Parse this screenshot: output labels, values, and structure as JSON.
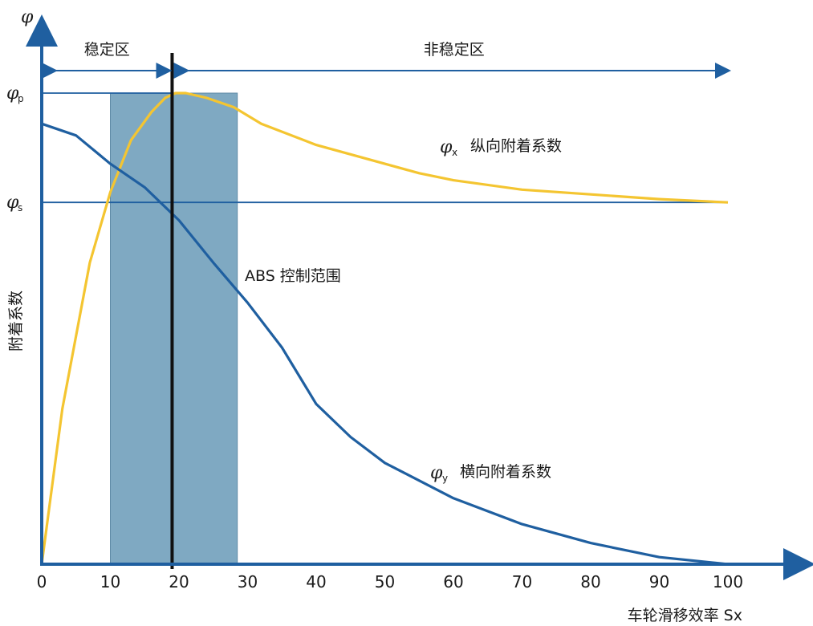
{
  "chart_data": {
    "type": "line",
    "xlabel": "车轮滑移效率 Sx",
    "ylabel": "附着系数",
    "y_axis_symbol": "φ",
    "xlim": [
      0,
      100
    ],
    "ylim": [
      0,
      1
    ],
    "x_ticks": [
      "0",
      "10",
      "20",
      "30",
      "40",
      "50",
      "60",
      "70",
      "80",
      "90",
      "100"
    ],
    "y_ticks": [
      {
        "symbol": "φ",
        "sub": "p",
        "value": 1.0
      },
      {
        "symbol": "φ",
        "sub": "s",
        "value": 0.768
      }
    ],
    "grid": false,
    "zones": {
      "stable": {
        "label": "稳定区",
        "from": 0,
        "to": 19
      },
      "unstable": {
        "label": "非稳定区",
        "from": 19,
        "to": 100
      }
    },
    "abs_range": {
      "label": "ABS 控制范围",
      "from": 10,
      "to": 28.5,
      "color": "#7fa9c2"
    },
    "peak_line_x": 19,
    "series": [
      {
        "name": "纵向附着系数",
        "symbol": "φ",
        "sub": "x",
        "color": "#f4c531",
        "x": [
          0,
          3,
          7,
          10,
          13,
          16,
          18,
          19.5,
          21,
          24,
          28,
          32,
          40,
          50,
          55,
          60,
          70,
          80,
          90,
          100
        ],
        "y": [
          0,
          0.33,
          0.64,
          0.79,
          0.9,
          0.96,
          0.99,
          1.0,
          1.0,
          0.99,
          0.97,
          0.935,
          0.89,
          0.85,
          0.83,
          0.815,
          0.795,
          0.785,
          0.775,
          0.768
        ]
      },
      {
        "name": "横向附着系数",
        "symbol": "φ",
        "sub": "y",
        "color": "#1f5fa0",
        "x": [
          0,
          5,
          10,
          15,
          20,
          25,
          30,
          35,
          40,
          45,
          50,
          60,
          70,
          80,
          90,
          100
        ],
        "y": [
          0.935,
          0.91,
          0.85,
          0.8,
          0.73,
          0.64,
          0.555,
          0.46,
          0.34,
          0.27,
          0.215,
          0.14,
          0.085,
          0.045,
          0.015,
          0.0
        ]
      }
    ]
  }
}
